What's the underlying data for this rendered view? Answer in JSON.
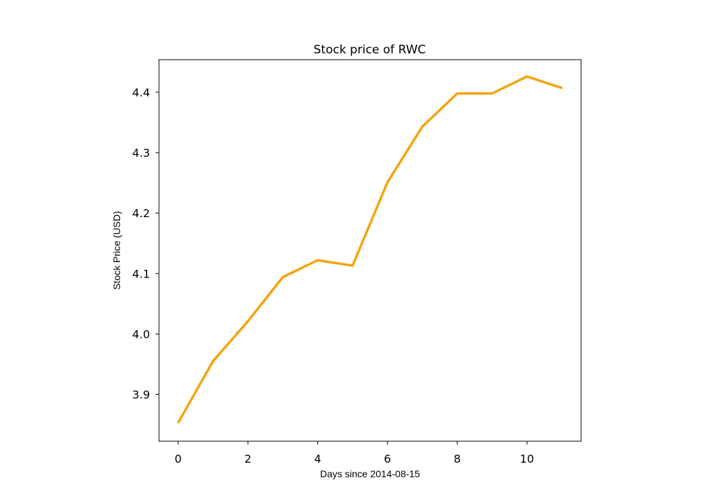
{
  "chart_data": {
    "type": "line",
    "title": "Stock price of RWC",
    "xlabel": "Days since 2014-08-15",
    "ylabel": "Stock Price (USD)",
    "x": [
      0,
      1,
      2,
      3,
      4,
      5,
      6,
      7,
      8,
      9,
      10,
      11
    ],
    "series": [
      {
        "values": [
          3.853,
          3.955,
          4.021,
          4.094,
          4.122,
          4.113,
          4.251,
          4.343,
          4.398,
          4.398,
          4.426,
          4.407
        ],
        "color": "#f5a30f"
      }
    ],
    "xlim": [
      -0.55,
      11.55
    ],
    "ylim": [
      3.8225,
      4.4539
    ],
    "xticks": [
      0,
      2,
      4,
      6,
      8,
      10
    ],
    "yticks": [
      3.9,
      4.0,
      4.1,
      4.2,
      4.3,
      4.4
    ],
    "grid": false,
    "legend": "none"
  }
}
